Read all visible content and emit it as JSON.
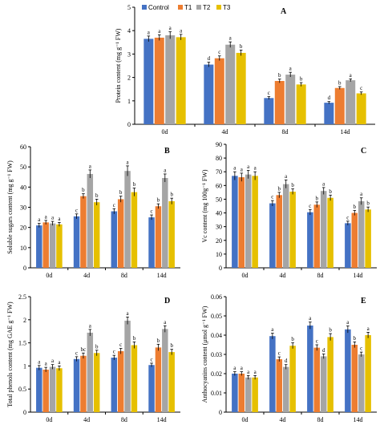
{
  "legend": {
    "items": [
      {
        "label": "Control",
        "color": "#4472c4"
      },
      {
        "label": "T1",
        "color": "#ed7d31"
      },
      {
        "label": "T2",
        "color": "#a5a5a5"
      },
      {
        "label": "T3",
        "color": "#e6c000"
      }
    ]
  },
  "chart_data": [
    {
      "type": "bar",
      "panel": "A",
      "ylabel": "Protein content (mg g⁻¹ FW)",
      "ylim": [
        0,
        5
      ],
      "yticks": [
        0,
        1,
        2,
        3,
        4,
        5
      ],
      "categories": [
        "0d",
        "4d",
        "8d",
        "14d"
      ],
      "series": [
        {
          "name": "Control",
          "values": [
            3.65,
            2.55,
            1.12,
            0.92
          ],
          "errors": [
            0.12,
            0.1,
            0.06,
            0.05
          ],
          "letters": [
            "a",
            "d",
            "c",
            "d"
          ]
        },
        {
          "name": "T1",
          "values": [
            3.7,
            2.82,
            1.85,
            1.55
          ],
          "errors": [
            0.12,
            0.1,
            0.08,
            0.06
          ],
          "letters": [
            "a",
            "c",
            "b",
            "b"
          ]
        },
        {
          "name": "T2",
          "values": [
            3.8,
            3.4,
            2.12,
            1.88
          ],
          "errors": [
            0.15,
            0.12,
            0.1,
            0.06
          ],
          "letters": [
            "a",
            "a",
            "a",
            "a"
          ]
        },
        {
          "name": "T3",
          "values": [
            3.72,
            3.05,
            1.7,
            1.32
          ],
          "errors": [
            0.12,
            0.12,
            0.08,
            0.06
          ],
          "letters": [
            "a",
            "b",
            "b",
            "c"
          ]
        }
      ]
    },
    {
      "type": "bar",
      "panel": "B",
      "ylabel": "Soluble sugars content (mg g⁻¹ FW)",
      "ylim": [
        0,
        60
      ],
      "yticks": [
        0,
        10,
        20,
        30,
        40,
        50,
        60
      ],
      "categories": [
        "0d",
        "4d",
        "8d",
        "14d"
      ],
      "series": [
        {
          "name": "Control",
          "values": [
            21,
            25.5,
            28,
            25
          ],
          "errors": [
            1,
            1.2,
            1.3,
            1.2
          ],
          "letters": [
            "a",
            "c",
            "c",
            "c"
          ]
        },
        {
          "name": "T1",
          "values": [
            22.5,
            35.5,
            34,
            30.5
          ],
          "errors": [
            1,
            1.2,
            1.5,
            1.2
          ],
          "letters": [
            "a",
            "b",
            "b",
            "b"
          ]
        },
        {
          "name": "T2",
          "values": [
            22,
            46.5,
            48,
            44.5
          ],
          "errors": [
            1,
            2,
            2.5,
            2
          ],
          "letters": [
            "a",
            "a",
            "a",
            "a"
          ]
        },
        {
          "name": "T3",
          "values": [
            21.5,
            32.5,
            37.5,
            33
          ],
          "errors": [
            1,
            1.5,
            2,
            1.5
          ],
          "letters": [
            "a",
            "b",
            "b",
            "b"
          ]
        }
      ]
    },
    {
      "type": "bar",
      "panel": "C",
      "ylabel": "Vc content (mg 100g⁻¹ FW)",
      "ylim": [
        0,
        90
      ],
      "yticks": [
        0,
        10,
        20,
        30,
        40,
        50,
        60,
        70,
        80,
        90
      ],
      "categories": [
        "0d",
        "4d",
        "8d",
        "14d"
      ],
      "series": [
        {
          "name": "Control",
          "values": [
            67,
            47,
            40.5,
            32.5
          ],
          "errors": [
            3,
            2,
            2,
            1.5
          ],
          "letters": [
            "a",
            "c",
            "c",
            "c"
          ]
        },
        {
          "name": "T1",
          "values": [
            66,
            53,
            46,
            40
          ],
          "errors": [
            3,
            2,
            2,
            1.8
          ],
          "letters": [
            "a",
            "b",
            "b",
            "b"
          ]
        },
        {
          "name": "T2",
          "values": [
            68,
            61,
            56,
            48.5
          ],
          "errors": [
            3,
            3,
            2.5,
            2.5
          ],
          "letters": [
            "a",
            "a",
            "a",
            "a"
          ]
        },
        {
          "name": "T3",
          "values": [
            67,
            55.5,
            51,
            42.5
          ],
          "errors": [
            3,
            2,
            2,
            1.8
          ],
          "letters": [
            "a",
            "b",
            "b",
            "b"
          ]
        }
      ]
    },
    {
      "type": "bar",
      "panel": "D",
      "ylabel": "Total phenols content (mg GAE g⁻¹ FW)",
      "ylim": [
        0,
        2.5
      ],
      "yticks": [
        0,
        0.5,
        1,
        1.5,
        2,
        2.5
      ],
      "categories": [
        "0d",
        "4d",
        "8d",
        "14d"
      ],
      "series": [
        {
          "name": "Control",
          "values": [
            0.96,
            1.15,
            1.18,
            1.02
          ],
          "errors": [
            0.05,
            0.05,
            0.05,
            0.04
          ],
          "letters": [
            "a",
            "c",
            "c",
            "c"
          ]
        },
        {
          "name": "T1",
          "values": [
            0.92,
            1.22,
            1.32,
            1.4
          ],
          "errors": [
            0.05,
            0.06,
            0.06,
            0.07
          ],
          "letters": [
            "a",
            "bc",
            "c",
            "b"
          ]
        },
        {
          "name": "T2",
          "values": [
            0.98,
            1.72,
            1.98,
            1.8
          ],
          "errors": [
            0.05,
            0.07,
            0.08,
            0.07
          ],
          "letters": [
            "a",
            "a",
            "a",
            "a"
          ]
        },
        {
          "name": "T3",
          "values": [
            0.95,
            1.28,
            1.45,
            1.3
          ],
          "errors": [
            0.05,
            0.06,
            0.07,
            0.06
          ],
          "letters": [
            "a",
            "b",
            "b",
            "b"
          ]
        }
      ]
    },
    {
      "type": "bar",
      "panel": "E",
      "ylabel": "Anthocyanins content (μmol g⁻¹ FW)",
      "ylim": [
        0,
        0.06
      ],
      "yticks": [
        0,
        0.01,
        0.02,
        0.03,
        0.04,
        0.05,
        0.06
      ],
      "categories": [
        "0d",
        "4d",
        "8d",
        "14d"
      ],
      "series": [
        {
          "name": "Control",
          "values": [
            0.02,
            0.0395,
            0.045,
            0.043
          ],
          "errors": [
            0.001,
            0.0015,
            0.0018,
            0.0018
          ],
          "letters": [
            "a",
            "a",
            "a",
            "a"
          ]
        },
        {
          "name": "T1",
          "values": [
            0.02,
            0.0275,
            0.0335,
            0.035
          ],
          "errors": [
            0.001,
            0.0012,
            0.0015,
            0.0015
          ],
          "letters": [
            "a",
            "c",
            "c",
            "b"
          ]
        },
        {
          "name": "T2",
          "values": [
            0.018,
            0.0235,
            0.029,
            0.03
          ],
          "errors": [
            0.001,
            0.0012,
            0.0012,
            0.0012
          ],
          "letters": [
            "a",
            "d",
            "d",
            "c"
          ]
        },
        {
          "name": "T3",
          "values": [
            0.018,
            0.0345,
            0.039,
            0.04
          ],
          "errors": [
            0.001,
            0.0015,
            0.0018,
            0.0015
          ],
          "letters": [
            "a",
            "b",
            "b",
            "a"
          ]
        }
      ]
    }
  ]
}
